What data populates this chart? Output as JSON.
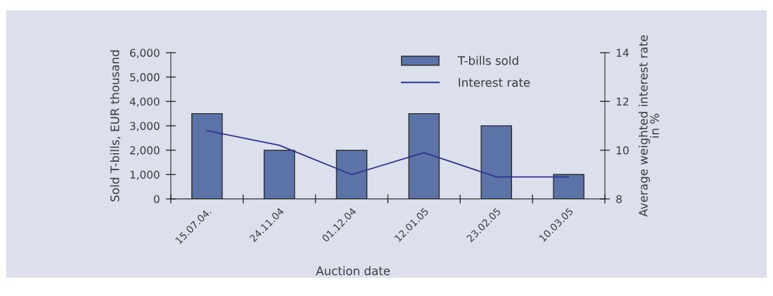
{
  "chart_data": {
    "type": "bar",
    "categories": [
      "15.07.04.",
      "24.11.04",
      "01.12.04",
      "12.01.05",
      "23.02.05",
      "10.03.05"
    ],
    "series": [
      {
        "name": "T-bills sold",
        "color": "#5b73a6",
        "values": [
          3500,
          2000,
          2000,
          3500,
          3000,
          1000
        ]
      },
      {
        "name": "Interest rate",
        "type": "line",
        "axis": "y2",
        "color": "#2e3192",
        "values": [
          10.8,
          10.2,
          9.0,
          9.9,
          8.9,
          8.9
        ]
      }
    ],
    "xlabel": "Auction date",
    "ylabel": "Sold T-bills, EUR thousand",
    "y2label": "Average weighted interest rate\nin %",
    "ylim": [
      0,
      6000
    ],
    "yticks": [
      0,
      {
        "value": 1000,
        "label": "1,000"
      },
      {
        "value": 2000,
        "label": "2,000"
      },
      {
        "value": 3000,
        "label": "3,000"
      },
      {
        "value": 4000,
        "label": "4,000"
      },
      {
        "value": 5000,
        "label": "5,000"
      },
      {
        "value": 6000,
        "label": "6,000"
      }
    ],
    "y2lim": [
      8,
      14
    ],
    "y2ticks": [
      8,
      10,
      12,
      14
    ],
    "legend": "top"
  }
}
